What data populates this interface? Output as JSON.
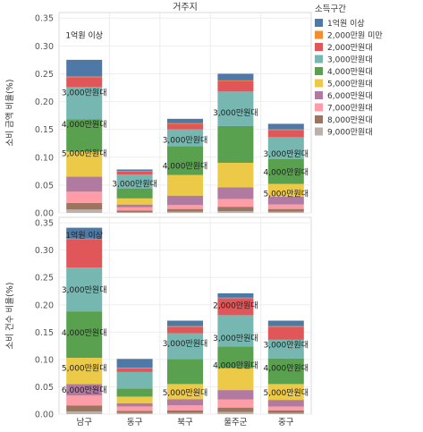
{
  "chart_data": {
    "type": "bar",
    "stacked": true,
    "title": "거주지",
    "categories": [
      "남구",
      "동구",
      "북구",
      "울주군",
      "중구"
    ],
    "legend": {
      "title": "소득구간",
      "placement": "right",
      "entries": [
        {
          "name": "1억원 이상",
          "color": "#4e79a7"
        },
        {
          "name": "2,000만원 미만",
          "color": "#f28e2b"
        },
        {
          "name": "2,000만원대",
          "color": "#e15759"
        },
        {
          "name": "3,000만원대",
          "color": "#76b7b2"
        },
        {
          "name": "4,000만원대",
          "color": "#59a14f"
        },
        {
          "name": "5,000만원대",
          "color": "#edc948"
        },
        {
          "name": "6,000만원대",
          "color": "#b07aa1"
        },
        {
          "name": "7,000만원대",
          "color": "#ff9da7"
        },
        {
          "name": "8,000만원대",
          "color": "#9c755f"
        },
        {
          "name": "9,000만원대",
          "color": "#bab0ac"
        }
      ]
    },
    "stack_order_bottom_to_top": [
      "9,000만원대",
      "8,000만원대",
      "7,000만원대",
      "6,000만원대",
      "5,000만원대",
      "4,000만원대",
      "3,000만원대",
      "2,000만원대",
      "2,000만원 미만",
      "1억원 이상"
    ],
    "panels": [
      {
        "ylabel": "소비 금액 비율(%)",
        "ylim": [
          0,
          0.36
        ],
        "ticks": [
          "0.00",
          "0.05",
          "0.10",
          "0.15",
          "0.20",
          "0.25",
          "0.30",
          "0.35"
        ],
        "tick_values": [
          0,
          0.05,
          0.1,
          0.15,
          0.2,
          0.25,
          0.3,
          0.35
        ],
        "stacks": [
          [
            0.006,
            0.012,
            0.02,
            0.027,
            0.045,
            0.058,
            0.058,
            0.018,
            0.001,
            0.03
          ],
          [
            0.001,
            0.003,
            0.006,
            0.005,
            0.011,
            0.018,
            0.025,
            0.005,
            0.001,
            0.003
          ],
          [
            0.002,
            0.005,
            0.007,
            0.017,
            0.037,
            0.052,
            0.03,
            0.01,
            0.001,
            0.008
          ],
          [
            0.003,
            0.008,
            0.014,
            0.021,
            0.044,
            0.066,
            0.062,
            0.019,
            0.001,
            0.012
          ],
          [
            0.002,
            0.005,
            0.008,
            0.014,
            0.023,
            0.045,
            0.039,
            0.013,
            0.001,
            0.01
          ]
        ],
        "bar_labels": [
          [
            {
              "text": "5,000만원대",
              "value": 0.108
            },
            {
              "text": "4,000万원대",
              "value": 0.16
            },
            {
              "text": "3,000만원대",
              "value": 0.217
            },
            {
              "text": "1억원 이상",
              "value": 0.32
            }
          ],
          [
            {
              "text": "3,000만원대",
              "value": 0.053
            }
          ],
          [
            {
              "text": "4,000만원대",
              "value": 0.085
            },
            {
              "text": "3,000만원대",
              "value": 0.132
            }
          ],
          [
            {
              "text": "3,000만원대",
              "value": 0.181
            }
          ],
          [
            {
              "text": "5,000만원대",
              "value": 0.035
            },
            {
              "text": "4,000만원대",
              "value": 0.074
            },
            {
              "text": "3,000만원대",
              "value": 0.107
            }
          ]
        ]
      },
      {
        "ylabel": "소비 건수 비율(%)",
        "ylim": [
          0,
          0.36
        ],
        "ticks": [
          "0.00",
          "0.05",
          "0.10",
          "0.15",
          "0.20",
          "0.25",
          "0.30",
          "0.35"
        ],
        "tick_values": [
          0,
          0.05,
          0.1,
          0.15,
          0.2,
          0.25,
          0.3,
          0.35
        ],
        "stacks": [
          [
            0.005,
            0.011,
            0.018,
            0.021,
            0.048,
            0.085,
            0.08,
            0.052,
            0.001,
            0.02
          ],
          [
            0.002,
            0.004,
            0.008,
            0.006,
            0.012,
            0.015,
            0.03,
            0.007,
            0.001,
            0.016
          ],
          [
            0.002,
            0.005,
            0.009,
            0.011,
            0.028,
            0.046,
            0.047,
            0.012,
            0.001,
            0.01
          ],
          [
            0.004,
            0.008,
            0.015,
            0.017,
            0.04,
            0.04,
            0.057,
            0.031,
            0.001,
            0.008
          ],
          [
            0.002,
            0.005,
            0.007,
            0.012,
            0.029,
            0.047,
            0.034,
            0.024,
            0.001,
            0.01
          ]
        ],
        "bar_labels": [
          [
            {
              "text": "6,000만원대",
              "value": 0.045
            },
            {
              "text": "5,000만원대",
              "value": 0.085
            },
            {
              "text": "4,000만원대",
              "value": 0.15
            },
            {
              "text": "3,000万원대",
              "value": 0.228
            },
            {
              "text": "1억원 이상",
              "value": 0.328
            }
          ],
          [],
          [
            {
              "text": "5,000만원대",
              "value": 0.04
            },
            {
              "text": "3,000만원대",
              "value": 0.13
            }
          ],
          [
            {
              "text": "4,000만원대",
              "value": 0.09
            },
            {
              "text": "3,000만원대",
              "value": 0.14
            },
            {
              "text": "2,000만원대",
              "value": 0.2
            }
          ],
          [
            {
              "text": "5,000만원대",
              "value": 0.04
            },
            {
              "text": "4,000만원대",
              "value": 0.085
            },
            {
              "text": "3,000만원대",
              "value": 0.128
            }
          ]
        ]
      }
    ]
  }
}
